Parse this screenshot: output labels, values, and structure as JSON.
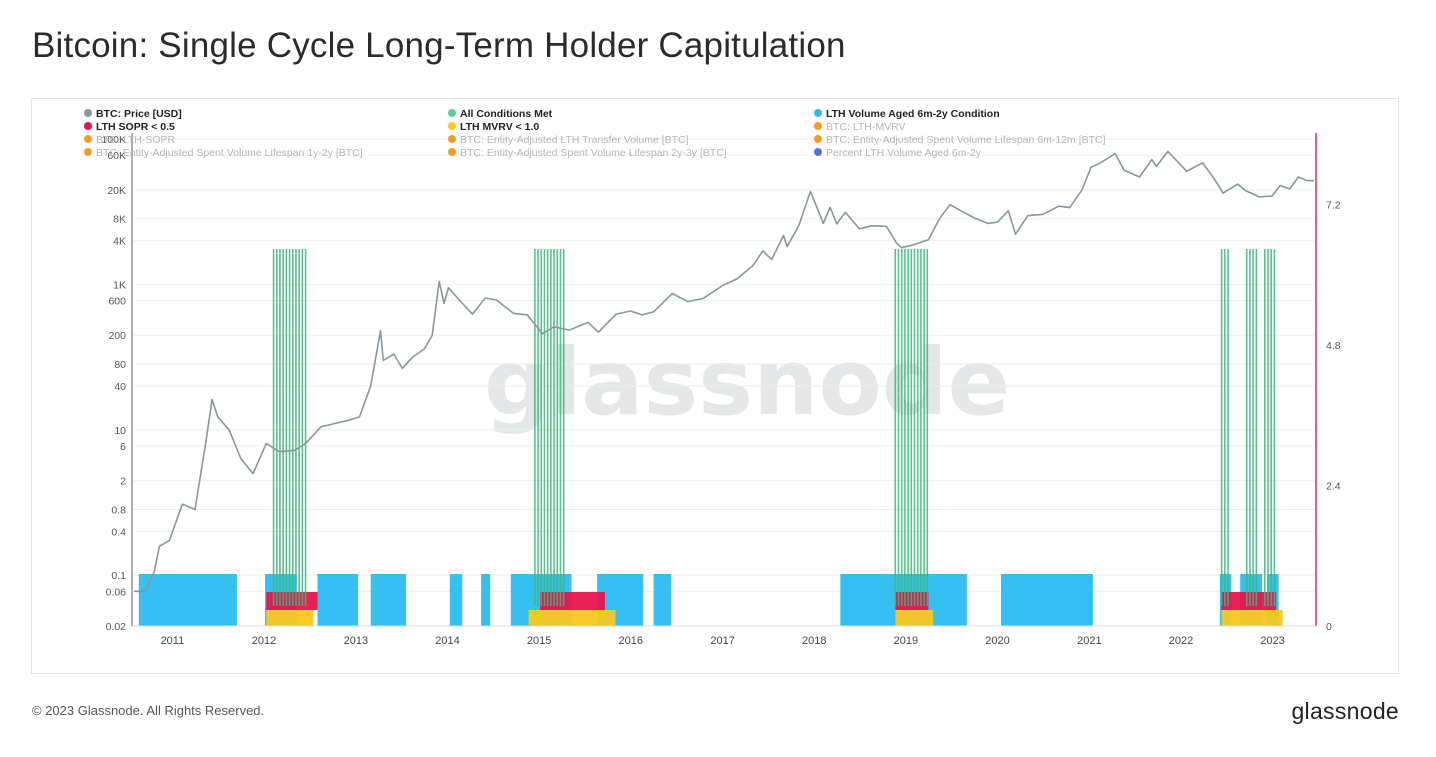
{
  "page": {
    "title": "Bitcoin: Single Cycle Long-Term Holder Capitulation",
    "copyright": "© 2023 Glassnode. All Rights Reserved.",
    "logo": "glassnode",
    "watermark": "glassnode"
  },
  "chart_data": {
    "type": "line",
    "title": "Bitcoin: Single Cycle Long-Term Holder Capitulation",
    "y_scale": "log",
    "ylim": [
      0.02,
      100000
    ],
    "y_ticks": [
      "100K",
      "60K",
      "20K",
      "8K",
      "4K",
      "1K",
      "600",
      "200",
      "80",
      "40",
      "10",
      "6",
      "2",
      "0.8",
      "0.4",
      "0.1",
      "0.06",
      "0.02"
    ],
    "y_tick_values": [
      100000,
      60000,
      20000,
      8000,
      4000,
      1000,
      600,
      200,
      80,
      40,
      10,
      6,
      2,
      0.8,
      0.4,
      0.1,
      0.06,
      0.02
    ],
    "y2_ticks": [
      "7.2",
      "4.8",
      "2.4",
      "0"
    ],
    "y2_tick_values": [
      7.2,
      4.8,
      2.4,
      0
    ],
    "y2lim": [
      0,
      9
    ],
    "xlim": [
      "2010-08-01",
      "2023-06-15"
    ],
    "x_ticks": [
      "2011",
      "2012",
      "2013",
      "2014",
      "2015",
      "2016",
      "2017",
      "2018",
      "2019",
      "2020",
      "2021",
      "2022",
      "2023"
    ],
    "grid": true,
    "legend_position": "top",
    "legend": [
      {
        "label": "BTC: Price [USD]",
        "color": "#8a969c",
        "active": true
      },
      {
        "label": "All Conditions Met",
        "color": "#5fcc9c",
        "active": true
      },
      {
        "label": "LTH Volume Aged 6m-2y Condition",
        "color": "#2bbcf0",
        "active": true
      },
      {
        "label": "LTH SOPR < 0.5",
        "color": "#e8134f",
        "active": true
      },
      {
        "label": "LTH MVRV < 1.0",
        "color": "#f7c81c",
        "active": true
      },
      {
        "label": "BTC: LTH-MVRV",
        "color": "#f59b2a",
        "active": false
      },
      {
        "label": "BTC: LTH-SOPR",
        "color": "#f59b2a",
        "active": false
      },
      {
        "label": "BTC: Entity-Adjusted LTH Transfer Volume [BTC]",
        "color": "#f59b2a",
        "active": false
      },
      {
        "label": "BTC: Entity-Adjusted Spent Volume Lifespan 6m-12m [BTC]",
        "color": "#f59b2a",
        "active": false
      },
      {
        "label": "BTC: Entity-Adjusted Spent Volume Lifespan 1y-2y [BTC]",
        "color": "#f59b2a",
        "active": false
      },
      {
        "label": "BTC: Entity-Adjusted Spent Volume Lifespan 2y-3y [BTC]",
        "color": "#f59b2a",
        "active": false
      },
      {
        "label": "Percent LTH Volume Aged 6m-2y",
        "color": "#4f72e0",
        "active": false
      }
    ],
    "series": [
      {
        "name": "BTC: Price [USD]",
        "color": "#8a969c",
        "x": [
          "2010-08-01",
          "2010-09-15",
          "2010-10-20",
          "2010-11-10",
          "2010-12-20",
          "2011-02-10",
          "2011-04-01",
          "2011-05-15",
          "2011-06-08",
          "2011-07-01",
          "2011-08-15",
          "2011-10-01",
          "2011-11-18",
          "2012-01-10",
          "2012-03-01",
          "2012-05-01",
          "2012-06-15",
          "2012-08-15",
          "2012-10-01",
          "2012-12-01",
          "2013-01-15",
          "2013-03-01",
          "2013-04-09",
          "2013-04-20",
          "2013-06-01",
          "2013-07-05",
          "2013-08-15",
          "2013-10-01",
          "2013-11-01",
          "2013-11-29",
          "2013-12-18",
          "2014-01-05",
          "2014-02-15",
          "2014-04-10",
          "2014-06-01",
          "2014-07-15",
          "2014-09-20",
          "2014-11-15",
          "2015-01-14",
          "2015-03-01",
          "2015-05-01",
          "2015-07-15",
          "2015-08-25",
          "2015-11-04",
          "2015-12-31",
          "2016-02-15",
          "2016-04-01",
          "2016-06-15",
          "2016-08-15",
          "2016-10-15",
          "2016-12-31",
          "2017-03-01",
          "2017-05-01",
          "2017-06-10",
          "2017-07-15",
          "2017-09-01",
          "2017-09-15",
          "2017-11-01",
          "2017-12-17",
          "2018-02-06",
          "2018-03-05",
          "2018-04-01",
          "2018-05-05",
          "2018-06-30",
          "2018-08-15",
          "2018-10-15",
          "2018-11-25",
          "2018-12-15",
          "2019-02-01",
          "2019-04-01",
          "2019-05-15",
          "2019-06-26",
          "2019-08-15",
          "2019-10-01",
          "2019-11-25",
          "2020-01-01",
          "2020-02-13",
          "2020-03-13",
          "2020-05-01",
          "2020-07-01",
          "2020-09-01",
          "2020-10-15",
          "2020-12-01",
          "2021-01-08",
          "2021-02-15",
          "2021-04-14",
          "2021-05-20",
          "2021-07-20",
          "2021-09-07",
          "2021-09-25",
          "2021-11-10",
          "2022-01-24",
          "2022-03-28",
          "2022-05-12",
          "2022-06-18",
          "2022-08-15",
          "2022-09-15",
          "2022-11-09",
          "2022-12-31",
          "2023-01-31",
          "2023-03-10",
          "2023-04-14",
          "2023-05-15",
          "2023-06-15"
        ],
        "values": [
          0.06,
          0.06,
          0.11,
          0.25,
          0.3,
          0.95,
          0.8,
          7,
          26,
          15,
          10,
          4,
          2.5,
          6.5,
          5,
          5.2,
          6.5,
          11,
          12,
          13.5,
          15,
          40,
          230,
          90,
          110,
          70,
          100,
          130,
          200,
          1100,
          550,
          900,
          620,
          390,
          650,
          610,
          400,
          380,
          210,
          260,
          235,
          300,
          220,
          390,
          430,
          380,
          420,
          750,
          580,
          640,
          960,
          1200,
          1800,
          2900,
          2200,
          4700,
          3300,
          6500,
          19000,
          6900,
          11500,
          6800,
          9800,
          5800,
          6400,
          6300,
          3700,
          3200,
          3500,
          4100,
          8000,
          12500,
          10000,
          8200,
          6900,
          7200,
          10300,
          4900,
          8800,
          9200,
          11900,
          11400,
          19500,
          41000,
          47000,
          63000,
          37000,
          30000,
          52000,
          42000,
          67500,
          36000,
          47000,
          29000,
          18000,
          24000,
          19500,
          16000,
          16500,
          23000,
          20500,
          30000,
          27000,
          26500
        ]
      }
    ],
    "condition_zones": {
      "all_conditions_met": [
        [
          "2012-02-08",
          "2012-06-25"
        ],
        [
          "2014-12-15",
          "2015-04-10"
        ],
        [
          "2018-11-20",
          "2019-04-05"
        ],
        [
          "2022-06-12",
          "2022-07-18"
        ],
        [
          "2022-09-20",
          "2022-11-08"
        ],
        [
          "2022-12-01",
          "2023-01-10"
        ]
      ],
      "lth_volume_6m_2y": [
        [
          "2010-08-20",
          "2011-09-15"
        ],
        [
          "2012-01-05",
          "2012-05-10"
        ],
        [
          "2012-08-01",
          "2013-01-10"
        ],
        [
          "2013-03-01",
          "2013-07-20"
        ],
        [
          "2014-01-10",
          "2014-03-01"
        ],
        [
          "2014-05-15",
          "2014-06-20"
        ],
        [
          "2014-09-10",
          "2015-05-10"
        ],
        [
          "2015-08-20",
          "2016-02-20"
        ],
        [
          "2016-04-01",
          "2016-06-10"
        ],
        [
          "2018-04-15",
          "2019-09-01"
        ],
        [
          "2020-01-15",
          "2021-01-15"
        ],
        [
          "2022-06-05",
          "2022-07-20"
        ],
        [
          "2022-08-25",
          "2022-11-20"
        ],
        [
          "2022-12-10",
          "2023-01-25"
        ]
      ],
      "lth_sopr_lt_0_5": [
        [
          "2012-01-10",
          "2012-08-01"
        ],
        [
          "2015-01-05",
          "2015-09-20"
        ],
        [
          "2018-11-20",
          "2019-04-01"
        ],
        [
          "2022-06-10",
          "2023-01-15"
        ]
      ],
      "lth_mvrv_lt_1_0": [
        [
          "2012-01-10",
          "2012-07-15"
        ],
        [
          "2014-11-20",
          "2015-11-01"
        ],
        [
          "2018-11-20",
          "2019-04-20"
        ],
        [
          "2022-06-12",
          "2023-02-10"
        ]
      ]
    }
  }
}
